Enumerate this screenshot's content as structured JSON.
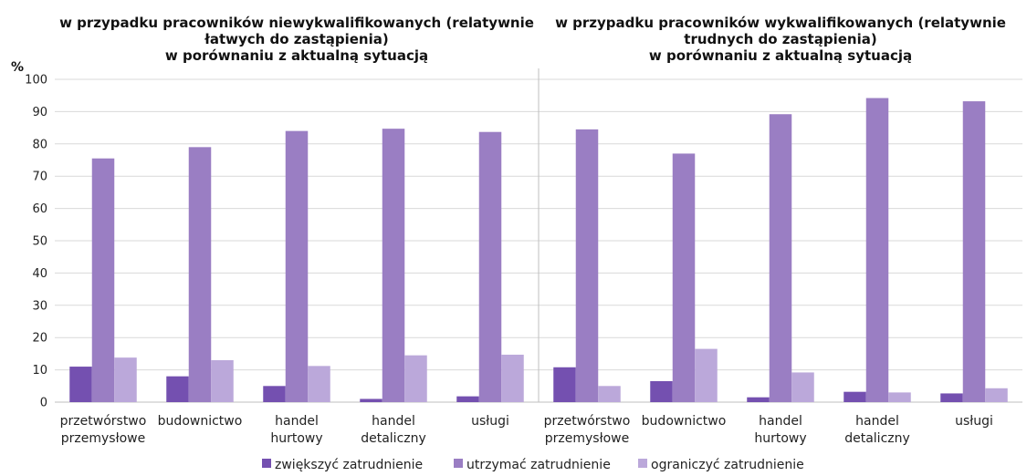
{
  "chart_data": {
    "type": "bar",
    "unit_label": "%",
    "ylim": [
      0,
      100
    ],
    "yticks": [
      0,
      10,
      20,
      30,
      40,
      50,
      60,
      70,
      80,
      90,
      100
    ],
    "grid": true,
    "legend_position": "bottom",
    "series_names": [
      "zwiększyć zatrudnienie",
      "utrzymać zatrudnienie",
      "ograniczyć zatrudnienie"
    ],
    "colors": [
      "#7450B0",
      "#9A7EC3",
      "#BBA8DA"
    ],
    "panels": [
      {
        "title_lines": [
          "w przypadku pracowników niewykwalifikowanych (relatywnie",
          "łatwych do zastąpienia)",
          "w porównaniu z aktualną sytuacją"
        ],
        "categories": [
          [
            "przetwórstwo",
            "przemysłowe"
          ],
          [
            "budownictwo"
          ],
          [
            "handel",
            "hurtowy"
          ],
          [
            "handel",
            "detaliczny"
          ],
          [
            "usługi"
          ]
        ],
        "series": [
          {
            "name": "zwiększyć zatrudnienie",
            "values": [
              11,
              8,
              5,
              1,
              1.8
            ]
          },
          {
            "name": "utrzymać zatrudnienie",
            "values": [
              75.5,
              79,
              84,
              84.7,
              83.7
            ]
          },
          {
            "name": "ograniczyć zatrudnienie",
            "values": [
              13.8,
              13,
              11.2,
              14.5,
              14.7
            ]
          }
        ]
      },
      {
        "title_lines": [
          "w przypadku pracowników wykwalifikowanych (relatywnie",
          "trudnych do zastąpienia)",
          "w porównaniu z aktualną sytuacją"
        ],
        "categories": [
          [
            "przetwórstwo",
            "przemysłowe"
          ],
          [
            "budownictwo"
          ],
          [
            "handel",
            "hurtowy"
          ],
          [
            "handel",
            "detaliczny"
          ],
          [
            "usługi"
          ]
        ],
        "series": [
          {
            "name": "zwiększyć zatrudnienie",
            "values": [
              10.8,
              6.5,
              1.5,
              3.2,
              2.7
            ]
          },
          {
            "name": "utrzymać zatrudnienie",
            "values": [
              84.5,
              77,
              89.2,
              94.2,
              93.2
            ]
          },
          {
            "name": "ograniczyć zatrudnienie",
            "values": [
              5,
              16.5,
              9.2,
              3,
              4.3
            ]
          }
        ]
      }
    ]
  }
}
